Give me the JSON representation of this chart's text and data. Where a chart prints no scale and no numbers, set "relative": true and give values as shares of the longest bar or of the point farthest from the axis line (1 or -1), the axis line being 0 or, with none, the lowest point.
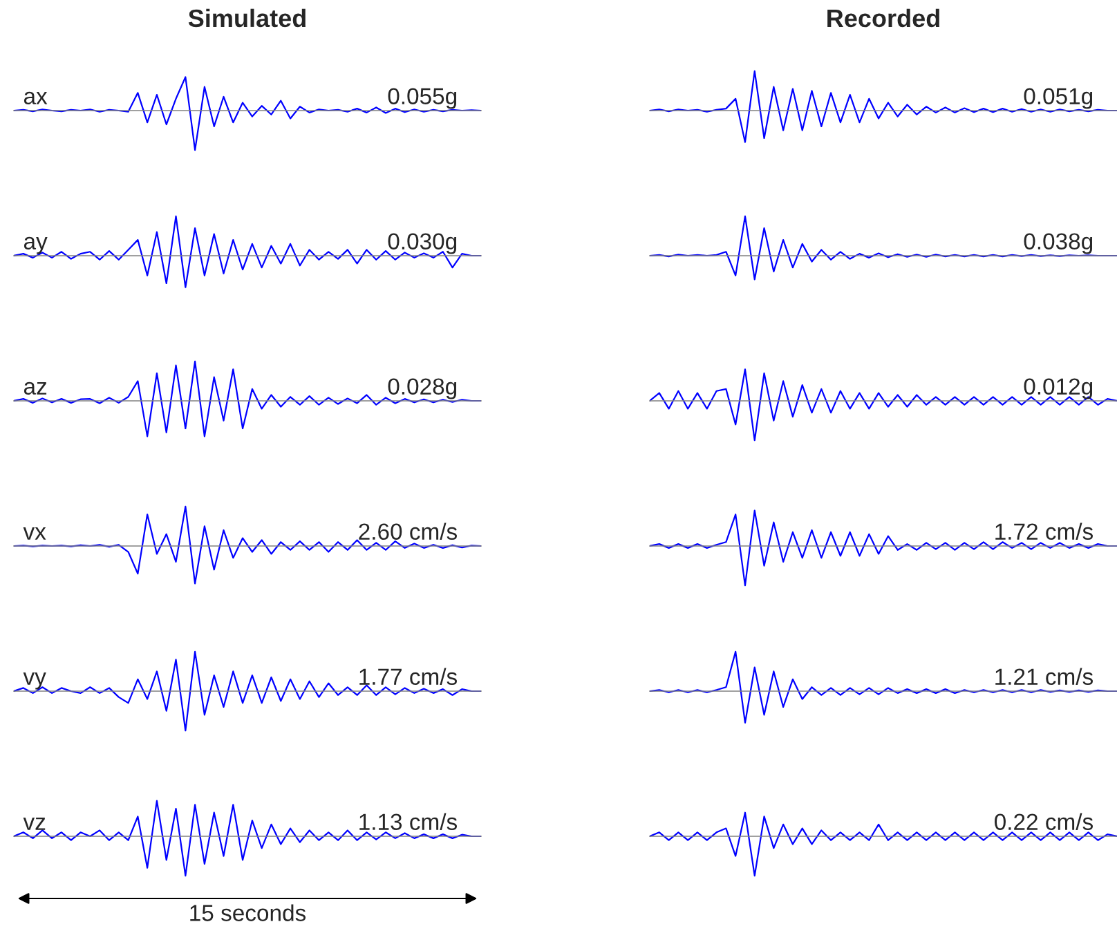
{
  "chart_data": [
    {
      "type": "line",
      "title": "Simulated",
      "relative": true,
      "annotations": [
        "ax",
        "0.055g"
      ],
      "categories": [
        null,
        null,
        null,
        null,
        null,
        null,
        null,
        null,
        null,
        null,
        null,
        null,
        null,
        null,
        null,
        null,
        null,
        null,
        null,
        null,
        null,
        null,
        null,
        null,
        null,
        null,
        null,
        null,
        null,
        null,
        null,
        null,
        null,
        null,
        null,
        null,
        null,
        null,
        null,
        null,
        null,
        null,
        null,
        null,
        null,
        null,
        null,
        null,
        null,
        null
      ],
      "series": [
        {
          "color": "#0000ff",
          "values": [
            0,
            0.02,
            -0.02,
            0.03,
            0,
            -0.02,
            0.02,
            0,
            0.03,
            -0.03,
            0.02,
            0,
            -0.03,
            0.45,
            -0.3,
            0.4,
            -0.35,
            0.3,
            0.85,
            -1,
            0.6,
            -0.4,
            0.35,
            -0.3,
            0.2,
            -0.15,
            0.12,
            -0.1,
            0.25,
            -0.2,
            0.1,
            -0.05,
            0.03,
            0,
            0.02,
            -0.03,
            0.05,
            -0.05,
            0.08,
            -0.06,
            0.05,
            -0.04,
            0.03,
            -0.03,
            0.02,
            -0.02,
            0.02,
            0,
            0.01,
            0
          ]
        }
      ]
    },
    {
      "type": "line",
      "title": "Recorded",
      "relative": true,
      "annotations": [
        "0.051g"
      ],
      "categories": [
        null,
        null,
        null,
        null,
        null,
        null,
        null,
        null,
        null,
        null,
        null,
        null,
        null,
        null,
        null,
        null,
        null,
        null,
        null,
        null,
        null,
        null,
        null,
        null,
        null,
        null,
        null,
        null,
        null,
        null,
        null,
        null,
        null,
        null,
        null,
        null,
        null,
        null,
        null,
        null,
        null,
        null,
        null,
        null,
        null,
        null,
        null,
        null,
        null,
        null
      ],
      "series": [
        {
          "color": "#0000ff",
          "values": [
            0,
            0.03,
            -0.02,
            0.03,
            0,
            0.02,
            -0.03,
            0.02,
            0.05,
            0.3,
            -0.8,
            1,
            -0.7,
            0.6,
            -0.5,
            0.55,
            -0.5,
            0.5,
            -0.4,
            0.45,
            -0.3,
            0.4,
            -0.3,
            0.3,
            -0.2,
            0.2,
            -0.15,
            0.15,
            -0.1,
            0.1,
            -0.05,
            0.08,
            -0.05,
            0.06,
            -0.04,
            0.05,
            -0.04,
            0.05,
            -0.03,
            0.04,
            -0.03,
            0.03,
            -0.03,
            0.03,
            -0.02,
            0.02,
            -0.02,
            0.02,
            0,
            0
          ]
        }
      ]
    },
    {
      "type": "line",
      "relative": true,
      "annotations": [
        "ay",
        "0.030g"
      ],
      "categories": [
        null,
        null,
        null,
        null,
        null,
        null,
        null,
        null,
        null,
        null,
        null,
        null,
        null,
        null,
        null,
        null,
        null,
        null,
        null,
        null,
        null,
        null,
        null,
        null,
        null,
        null,
        null,
        null,
        null,
        null,
        null,
        null,
        null,
        null,
        null,
        null,
        null,
        null,
        null,
        null,
        null,
        null,
        null,
        null,
        null,
        null,
        null,
        null,
        null,
        null
      ],
      "series": [
        {
          "color": "#0000ff",
          "values": [
            0,
            0.05,
            -0.05,
            0.08,
            -0.05,
            0.1,
            -0.08,
            0.05,
            0.1,
            -0.1,
            0.12,
            -0.1,
            0.15,
            0.4,
            -0.5,
            0.6,
            -0.7,
            1,
            -0.8,
            0.7,
            -0.5,
            0.55,
            -0.45,
            0.4,
            -0.35,
            0.3,
            -0.3,
            0.25,
            -0.2,
            0.3,
            -0.25,
            0.15,
            -0.1,
            0.1,
            -0.08,
            0.15,
            -0.2,
            0.15,
            -0.1,
            0.12,
            -0.1,
            0.08,
            -0.05,
            0.06,
            -0.05,
            0.1,
            -0.3,
            0.05,
            0,
            0
          ]
        }
      ]
    },
    {
      "type": "line",
      "relative": true,
      "annotations": [
        "0.038g"
      ],
      "categories": [
        null,
        null,
        null,
        null,
        null,
        null,
        null,
        null,
        null,
        null,
        null,
        null,
        null,
        null,
        null,
        null,
        null,
        null,
        null,
        null,
        null,
        null,
        null,
        null,
        null,
        null,
        null,
        null,
        null,
        null,
        null,
        null,
        null,
        null,
        null,
        null,
        null,
        null,
        null,
        null,
        null,
        null,
        null,
        null,
        null,
        null,
        null,
        null,
        null,
        null
      ],
      "series": [
        {
          "color": "#0000ff",
          "values": [
            0,
            0.02,
            -0.02,
            0.03,
            0,
            0.02,
            0,
            0.02,
            0.1,
            -0.5,
            1,
            -0.6,
            0.7,
            -0.4,
            0.4,
            -0.3,
            0.3,
            -0.15,
            0.15,
            -0.1,
            0.1,
            -0.08,
            0.05,
            -0.05,
            0.06,
            -0.04,
            0.04,
            -0.03,
            0.03,
            -0.03,
            0.03,
            -0.02,
            0.02,
            -0.02,
            0.02,
            -0.02,
            0.02,
            -0.02,
            0.02,
            -0.01,
            0.02,
            -0.01,
            0.01,
            -0.01,
            0.01,
            0,
            0.01,
            0,
            0,
            0
          ]
        }
      ]
    },
    {
      "type": "line",
      "relative": true,
      "annotations": [
        "az",
        "0.028g"
      ],
      "categories": [
        null,
        null,
        null,
        null,
        null,
        null,
        null,
        null,
        null,
        null,
        null,
        null,
        null,
        null,
        null,
        null,
        null,
        null,
        null,
        null,
        null,
        null,
        null,
        null,
        null,
        null,
        null,
        null,
        null,
        null,
        null,
        null,
        null,
        null,
        null,
        null,
        null,
        null,
        null,
        null,
        null,
        null,
        null,
        null,
        null,
        null,
        null,
        null,
        null,
        null
      ],
      "series": [
        {
          "color": "#0000ff",
          "values": [
            0,
            0.05,
            -0.05,
            0.06,
            -0.04,
            0.05,
            -0.05,
            0.04,
            0.05,
            -0.06,
            0.08,
            -0.05,
            0.1,
            0.5,
            -0.9,
            0.7,
            -0.8,
            0.9,
            -0.7,
            1,
            -0.9,
            0.6,
            -0.5,
            0.8,
            -0.7,
            0.3,
            -0.2,
            0.15,
            -0.15,
            0.1,
            -0.1,
            0.12,
            -0.1,
            0.08,
            -0.08,
            0.06,
            -0.06,
            0.15,
            -0.1,
            0.08,
            -0.06,
            0.05,
            -0.04,
            0.04,
            -0.04,
            0.03,
            -0.03,
            0.03,
            0,
            0
          ]
        }
      ]
    },
    {
      "type": "line",
      "relative": true,
      "annotations": [
        "0.012g"
      ],
      "categories": [
        null,
        null,
        null,
        null,
        null,
        null,
        null,
        null,
        null,
        null,
        null,
        null,
        null,
        null,
        null,
        null,
        null,
        null,
        null,
        null,
        null,
        null,
        null,
        null,
        null,
        null,
        null,
        null,
        null,
        null,
        null,
        null,
        null,
        null,
        null,
        null,
        null,
        null,
        null,
        null,
        null,
        null,
        null,
        null,
        null,
        null,
        null,
        null,
        null,
        null
      ],
      "series": [
        {
          "color": "#0000ff",
          "values": [
            0,
            0.2,
            -0.2,
            0.25,
            -0.2,
            0.2,
            -0.2,
            0.25,
            0.3,
            -0.6,
            0.8,
            -1,
            0.7,
            -0.5,
            0.5,
            -0.4,
            0.4,
            -0.3,
            0.3,
            -0.3,
            0.25,
            -0.2,
            0.2,
            -0.2,
            0.2,
            -0.15,
            0.15,
            -0.15,
            0.15,
            -0.1,
            0.1,
            -0.1,
            0.1,
            -0.1,
            0.1,
            -0.1,
            0.1,
            -0.1,
            0.1,
            -0.1,
            0.1,
            -0.1,
            0.1,
            -0.1,
            0.1,
            -0.1,
            0.1,
            -0.1,
            0.05,
            0
          ]
        }
      ]
    },
    {
      "type": "line",
      "relative": true,
      "annotations": [
        "vx",
        "2.60 cm/s"
      ],
      "categories": [
        null,
        null,
        null,
        null,
        null,
        null,
        null,
        null,
        null,
        null,
        null,
        null,
        null,
        null,
        null,
        null,
        null,
        null,
        null,
        null,
        null,
        null,
        null,
        null,
        null,
        null,
        null,
        null,
        null,
        null,
        null,
        null,
        null,
        null,
        null,
        null,
        null,
        null,
        null,
        null,
        null,
        null,
        null,
        null,
        null,
        null,
        null,
        null,
        null,
        null
      ],
      "series": [
        {
          "color": "#0000ff",
          "values": [
            0,
            0.01,
            -0.01,
            0.01,
            0,
            0.01,
            -0.01,
            0.02,
            0,
            0.03,
            -0.02,
            0.03,
            -0.15,
            -0.7,
            0.8,
            -0.2,
            0.3,
            -0.4,
            1,
            -0.95,
            0.5,
            -0.6,
            0.4,
            -0.3,
            0.2,
            -0.15,
            0.15,
            -0.2,
            0.1,
            -0.1,
            0.12,
            -0.1,
            0.1,
            -0.15,
            0.1,
            -0.1,
            0.15,
            -0.1,
            0.08,
            -0.1,
            0.12,
            -0.05,
            0.06,
            -0.05,
            0.03,
            -0.05,
            0.02,
            -0.04,
            0.01,
            0
          ]
        }
      ]
    },
    {
      "type": "line",
      "relative": true,
      "annotations": [
        "1.72 cm/s"
      ],
      "categories": [
        null,
        null,
        null,
        null,
        null,
        null,
        null,
        null,
        null,
        null,
        null,
        null,
        null,
        null,
        null,
        null,
        null,
        null,
        null,
        null,
        null,
        null,
        null,
        null,
        null,
        null,
        null,
        null,
        null,
        null,
        null,
        null,
        null,
        null,
        null,
        null,
        null,
        null,
        null,
        null,
        null,
        null,
        null,
        null,
        null,
        null,
        null,
        null,
        null,
        null
      ],
      "series": [
        {
          "color": "#0000ff",
          "values": [
            0,
            0.05,
            -0.05,
            0.05,
            -0.05,
            0.05,
            -0.05,
            0.03,
            0.1,
            0.8,
            -1,
            0.9,
            -0.5,
            0.6,
            -0.4,
            0.35,
            -0.3,
            0.4,
            -0.3,
            0.35,
            -0.25,
            0.35,
            -0.25,
            0.3,
            -0.2,
            0.25,
            -0.1,
            0.05,
            -0.1,
            0.08,
            -0.08,
            0.08,
            -0.1,
            0.08,
            -0.08,
            0.1,
            -0.08,
            0.1,
            -0.05,
            0.08,
            -0.08,
            0.08,
            -0.05,
            0.08,
            -0.05,
            0.05,
            -0.05,
            0.05,
            0,
            0
          ]
        }
      ]
    },
    {
      "type": "line",
      "relative": true,
      "annotations": [
        "vy",
        "1.77 cm/s"
      ],
      "categories": [
        null,
        null,
        null,
        null,
        null,
        null,
        null,
        null,
        null,
        null,
        null,
        null,
        null,
        null,
        null,
        null,
        null,
        null,
        null,
        null,
        null,
        null,
        null,
        null,
        null,
        null,
        null,
        null,
        null,
        null,
        null,
        null,
        null,
        null,
        null,
        null,
        null,
        null,
        null,
        null,
        null,
        null,
        null,
        null,
        null,
        null,
        null,
        null,
        null,
        null
      ],
      "series": [
        {
          "color": "#0000ff",
          "values": [
            0,
            0.08,
            -0.05,
            0.1,
            -0.05,
            0.08,
            0,
            -0.05,
            0.1,
            -0.05,
            0.08,
            -0.15,
            -0.3,
            0.3,
            -0.2,
            0.5,
            -0.5,
            0.8,
            -1,
            1,
            -0.6,
            0.4,
            -0.4,
            0.5,
            -0.3,
            0.4,
            -0.3,
            0.35,
            -0.25,
            0.3,
            -0.2,
            0.25,
            -0.15,
            0.2,
            -0.1,
            0.1,
            -0.1,
            0.15,
            -0.1,
            0.1,
            -0.08,
            0.08,
            -0.05,
            0.06,
            -0.05,
            0.05,
            -0.1,
            0.05,
            0,
            0
          ]
        }
      ]
    },
    {
      "type": "line",
      "relative": true,
      "annotations": [
        "1.21 cm/s"
      ],
      "categories": [
        null,
        null,
        null,
        null,
        null,
        null,
        null,
        null,
        null,
        null,
        null,
        null,
        null,
        null,
        null,
        null,
        null,
        null,
        null,
        null,
        null,
        null,
        null,
        null,
        null,
        null,
        null,
        null,
        null,
        null,
        null,
        null,
        null,
        null,
        null,
        null,
        null,
        null,
        null,
        null,
        null,
        null,
        null,
        null,
        null,
        null,
        null,
        null,
        null,
        null
      ],
      "series": [
        {
          "color": "#0000ff",
          "values": [
            0,
            0.03,
            -0.03,
            0.03,
            -0.03,
            0.03,
            -0.03,
            0.03,
            0.1,
            1,
            -0.8,
            0.6,
            -0.6,
            0.5,
            -0.4,
            0.3,
            -0.2,
            0.1,
            -0.1,
            0.08,
            -0.1,
            0.08,
            -0.08,
            0.08,
            -0.08,
            0.08,
            -0.05,
            0.05,
            -0.05,
            0.05,
            -0.05,
            0.05,
            -0.05,
            0.03,
            -0.03,
            0.03,
            -0.03,
            0.03,
            -0.03,
            0.03,
            -0.03,
            0.03,
            -0.02,
            0.02,
            -0.02,
            0.02,
            -0.02,
            0.02,
            0,
            0
          ]
        }
      ]
    },
    {
      "type": "line",
      "relative": true,
      "annotations": [
        "vz",
        "1.13 cm/s",
        "15 seconds"
      ],
      "categories": [
        null,
        null,
        null,
        null,
        null,
        null,
        null,
        null,
        null,
        null,
        null,
        null,
        null,
        null,
        null,
        null,
        null,
        null,
        null,
        null,
        null,
        null,
        null,
        null,
        null,
        null,
        null,
        null,
        null,
        null,
        null,
        null,
        null,
        null,
        null,
        null,
        null,
        null,
        null,
        null,
        null,
        null,
        null,
        null,
        null,
        null,
        null,
        null,
        null,
        null
      ],
      "series": [
        {
          "color": "#0000ff",
          "values": [
            0,
            0.1,
            -0.05,
            0.15,
            -0.05,
            0.1,
            -0.1,
            0.1,
            0,
            0.15,
            -0.1,
            0.1,
            -0.1,
            0.5,
            -0.8,
            0.9,
            -0.6,
            0.7,
            -1,
            0.8,
            -0.7,
            0.6,
            -0.5,
            0.8,
            -0.6,
            0.4,
            -0.3,
            0.3,
            -0.2,
            0.2,
            -0.15,
            0.15,
            -0.1,
            0.1,
            -0.1,
            0.15,
            -0.1,
            0.1,
            -0.08,
            0.1,
            -0.05,
            0.08,
            -0.05,
            0.05,
            -0.05,
            0.05,
            -0.05,
            0.04,
            0,
            0
          ]
        }
      ]
    },
    {
      "type": "line",
      "relative": true,
      "annotations": [
        "0.22 cm/s"
      ],
      "categories": [
        null,
        null,
        null,
        null,
        null,
        null,
        null,
        null,
        null,
        null,
        null,
        null,
        null,
        null,
        null,
        null,
        null,
        null,
        null,
        null,
        null,
        null,
        null,
        null,
        null,
        null,
        null,
        null,
        null,
        null,
        null,
        null,
        null,
        null,
        null,
        null,
        null,
        null,
        null,
        null,
        null,
        null,
        null,
        null,
        null,
        null,
        null,
        null,
        null,
        null
      ],
      "series": [
        {
          "color": "#0000ff",
          "values": [
            0,
            0.1,
            -0.1,
            0.1,
            -0.1,
            0.1,
            -0.1,
            0.1,
            0.2,
            -0.5,
            0.6,
            -1,
            0.5,
            -0.3,
            0.3,
            -0.2,
            0.2,
            -0.2,
            0.15,
            -0.1,
            0.1,
            -0.1,
            0.1,
            -0.1,
            0.3,
            -0.1,
            0.1,
            -0.1,
            0.1,
            -0.1,
            0.1,
            -0.1,
            0.1,
            -0.1,
            0.1,
            -0.1,
            0.1,
            -0.1,
            0.1,
            -0.1,
            0.1,
            -0.1,
            0.1,
            -0.1,
            0.1,
            -0.1,
            0.1,
            -0.1,
            0.05,
            0
          ]
        }
      ]
    }
  ]
}
